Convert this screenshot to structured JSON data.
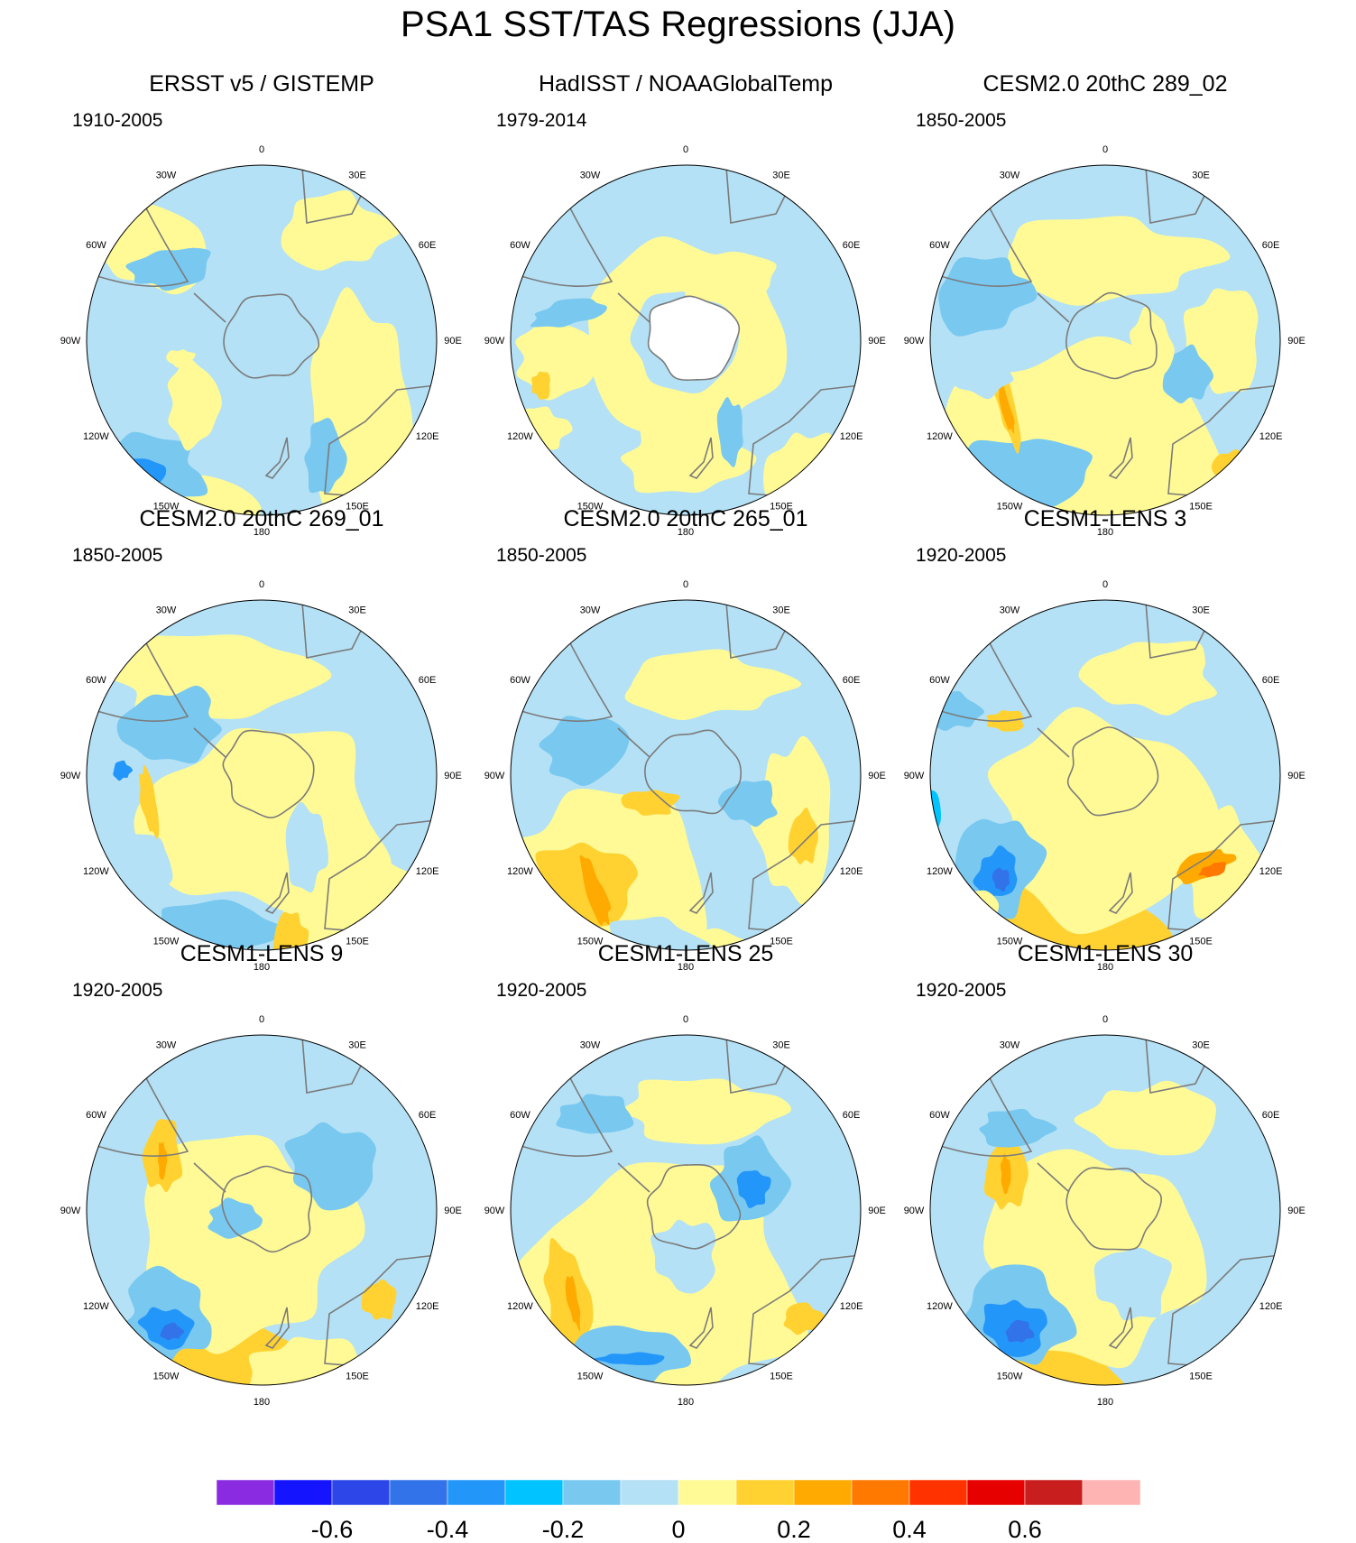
{
  "title": "PSA1 SST/TAS Regressions (JJA)",
  "panels": [
    {
      "title": "ERSST v5 / GISTEMP",
      "period": "1910-2005"
    },
    {
      "title": "HadISST / NOAAGlobalTemp",
      "period": "1979-2014"
    },
    {
      "title": "CESM2.0 20thC 289_02",
      "period": "1850-2005"
    },
    {
      "title": "CESM2.0 20thC 269_01",
      "period": "1850-2005"
    },
    {
      "title": "CESM2.0 20thC 265_01",
      "period": "1850-2005"
    },
    {
      "title": "CESM1-LENS 3",
      "period": "1920-2005"
    },
    {
      "title": "CESM1-LENS 9",
      "period": "1920-2005"
    },
    {
      "title": "CESM1-LENS 25",
      "period": "1920-2005"
    },
    {
      "title": "CESM1-LENS 30",
      "period": "1920-2005"
    }
  ],
  "longitude_labels": [
    "0",
    "30E",
    "60E",
    "90E",
    "120E",
    "150E",
    "180",
    "150W",
    "120W",
    "90W",
    "60W",
    "30W"
  ],
  "colorbar": {
    "colors": [
      "#8a2be2",
      "#1414ff",
      "#2c46e8",
      "#3273ea",
      "#2396fa",
      "#00c3ff",
      "#78c8f0",
      "#b4e1f5",
      "#fffa96",
      "#ffd232",
      "#ffaa00",
      "#ff7800",
      "#ff3200",
      "#e60000",
      "#c81e1e",
      "#ffb4b4"
    ],
    "tick_labels": [
      "-0.6",
      "-0.4",
      "-0.2",
      "0",
      "0.2",
      "0.4",
      "0.6"
    ]
  },
  "colors": {
    "ocean_background": "#b4e1f5",
    "coastline": "#7b7b7b",
    "land_mask": "#ffffff"
  }
}
